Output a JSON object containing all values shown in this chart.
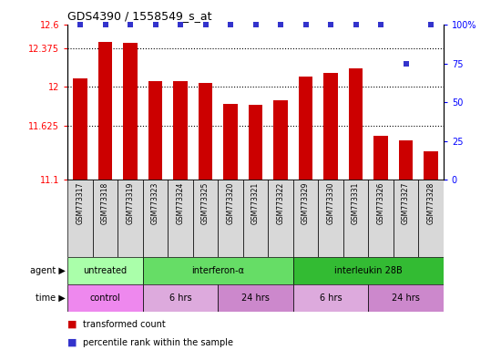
{
  "title": "GDS4390 / 1558549_s_at",
  "samples": [
    "GSM773317",
    "GSM773318",
    "GSM773319",
    "GSM773323",
    "GSM773324",
    "GSM773325",
    "GSM773320",
    "GSM773321",
    "GSM773322",
    "GSM773329",
    "GSM773330",
    "GSM773331",
    "GSM773326",
    "GSM773327",
    "GSM773328"
  ],
  "bar_values": [
    12.08,
    12.43,
    12.42,
    12.05,
    12.05,
    12.04,
    11.83,
    11.82,
    11.87,
    12.1,
    12.13,
    12.18,
    11.52,
    11.48,
    11.37
  ],
  "percentile_values": [
    100,
    100,
    100,
    100,
    100,
    100,
    100,
    100,
    100,
    100,
    100,
    100,
    100,
    75,
    100
  ],
  "bar_color": "#cc0000",
  "dot_color": "#3333cc",
  "ylim_left": [
    11.1,
    12.6
  ],
  "ylim_right": [
    0,
    100
  ],
  "yticks_left": [
    11.1,
    11.625,
    12.0,
    12.375,
    12.6
  ],
  "ytick_labels_left": [
    "11.1",
    "11.625",
    "12",
    "12.375",
    "12.6"
  ],
  "yticks_right": [
    0,
    25,
    50,
    75,
    100
  ],
  "ytick_labels_right": [
    "0",
    "25",
    "50",
    "75",
    "100%"
  ],
  "hgrid_at": [
    11.625,
    12.0,
    12.375
  ],
  "agent_groups": [
    {
      "label": "untreated",
      "start": 0,
      "end": 3,
      "color": "#aaffaa"
    },
    {
      "label": "interferon-α",
      "start": 3,
      "end": 9,
      "color": "#66dd66"
    },
    {
      "label": "interleukin 28B",
      "start": 9,
      "end": 15,
      "color": "#33bb33"
    }
  ],
  "time_groups": [
    {
      "label": "control",
      "start": 0,
      "end": 3,
      "color": "#ee88ee"
    },
    {
      "label": "6 hrs",
      "start": 3,
      "end": 6,
      "color": "#ddaadd"
    },
    {
      "label": "24 hrs",
      "start": 6,
      "end": 9,
      "color": "#cc88cc"
    },
    {
      "label": "6 hrs",
      "start": 9,
      "end": 12,
      "color": "#ddaadd"
    },
    {
      "label": "24 hrs",
      "start": 12,
      "end": 15,
      "color": "#cc88cc"
    }
  ],
  "legend": [
    {
      "color": "#cc0000",
      "label": "transformed count"
    },
    {
      "color": "#3333cc",
      "label": "percentile rank within the sample"
    }
  ],
  "sample_bg": "#d8d8d8",
  "bar_width": 0.55
}
